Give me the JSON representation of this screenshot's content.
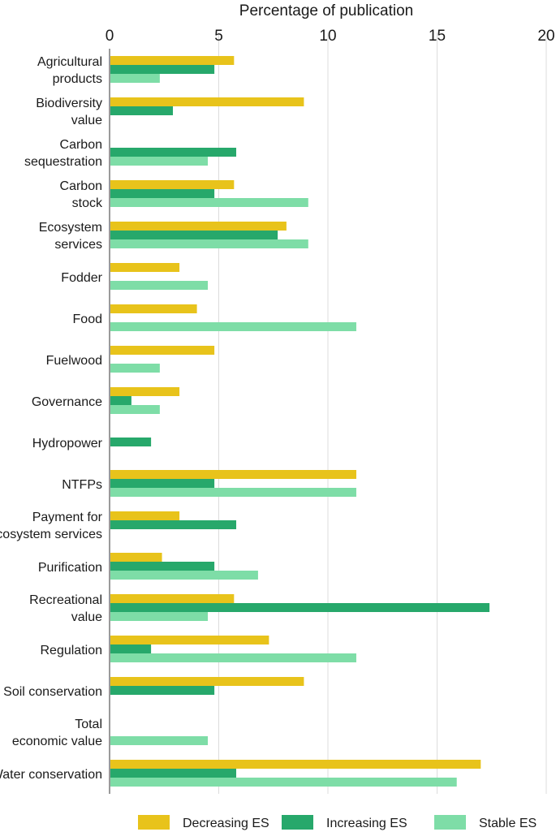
{
  "chart_data": {
    "type": "bar",
    "orientation": "horizontal",
    "title": "",
    "xlabel": "Percentage of publication",
    "ylabel": "",
    "xlim": [
      0,
      20
    ],
    "xticks": [
      "0",
      "5",
      "10",
      "15",
      "20"
    ],
    "grid": true,
    "legend_position": "bottom",
    "categories": [
      [
        "Agricultural",
        "products"
      ],
      [
        "Biodiversity",
        "value"
      ],
      [
        "Carbon",
        "sequestration"
      ],
      [
        "Carbon",
        "stock"
      ],
      [
        "Ecosystem",
        "services"
      ],
      [
        "Fodder"
      ],
      [
        "Food"
      ],
      [
        "Fuelwood"
      ],
      [
        "Governance"
      ],
      [
        "Hydropower"
      ],
      [
        "NTFPs"
      ],
      [
        "Payment for",
        "ecosystem services"
      ],
      [
        "Purification"
      ],
      [
        "Recreational",
        "value"
      ],
      [
        "Regulation"
      ],
      [
        "Soil conservation"
      ],
      [
        "Total",
        "economic value"
      ],
      [
        "Water conservation"
      ]
    ],
    "series": [
      {
        "name": "Decreasing ES",
        "color": "#e8c31b",
        "values": [
          5.7,
          8.9,
          0,
          5.7,
          8.1,
          3.2,
          4.0,
          4.8,
          3.2,
          0,
          11.3,
          3.2,
          2.4,
          5.7,
          7.3,
          8.9,
          0,
          17.0
        ]
      },
      {
        "name": "Increasing ES",
        "color": "#27a86b",
        "values": [
          4.8,
          2.9,
          5.8,
          4.8,
          7.7,
          0,
          0,
          0,
          1.0,
          1.9,
          4.8,
          5.8,
          4.8,
          17.4,
          1.9,
          4.8,
          0,
          5.8
        ]
      },
      {
        "name": "Stable ES",
        "color": "#7edda7",
        "values": [
          2.3,
          0,
          4.5,
          9.1,
          9.1,
          4.5,
          11.3,
          2.3,
          2.3,
          0,
          11.3,
          0,
          6.8,
          4.5,
          11.3,
          0,
          4.5,
          15.9
        ]
      }
    ]
  }
}
